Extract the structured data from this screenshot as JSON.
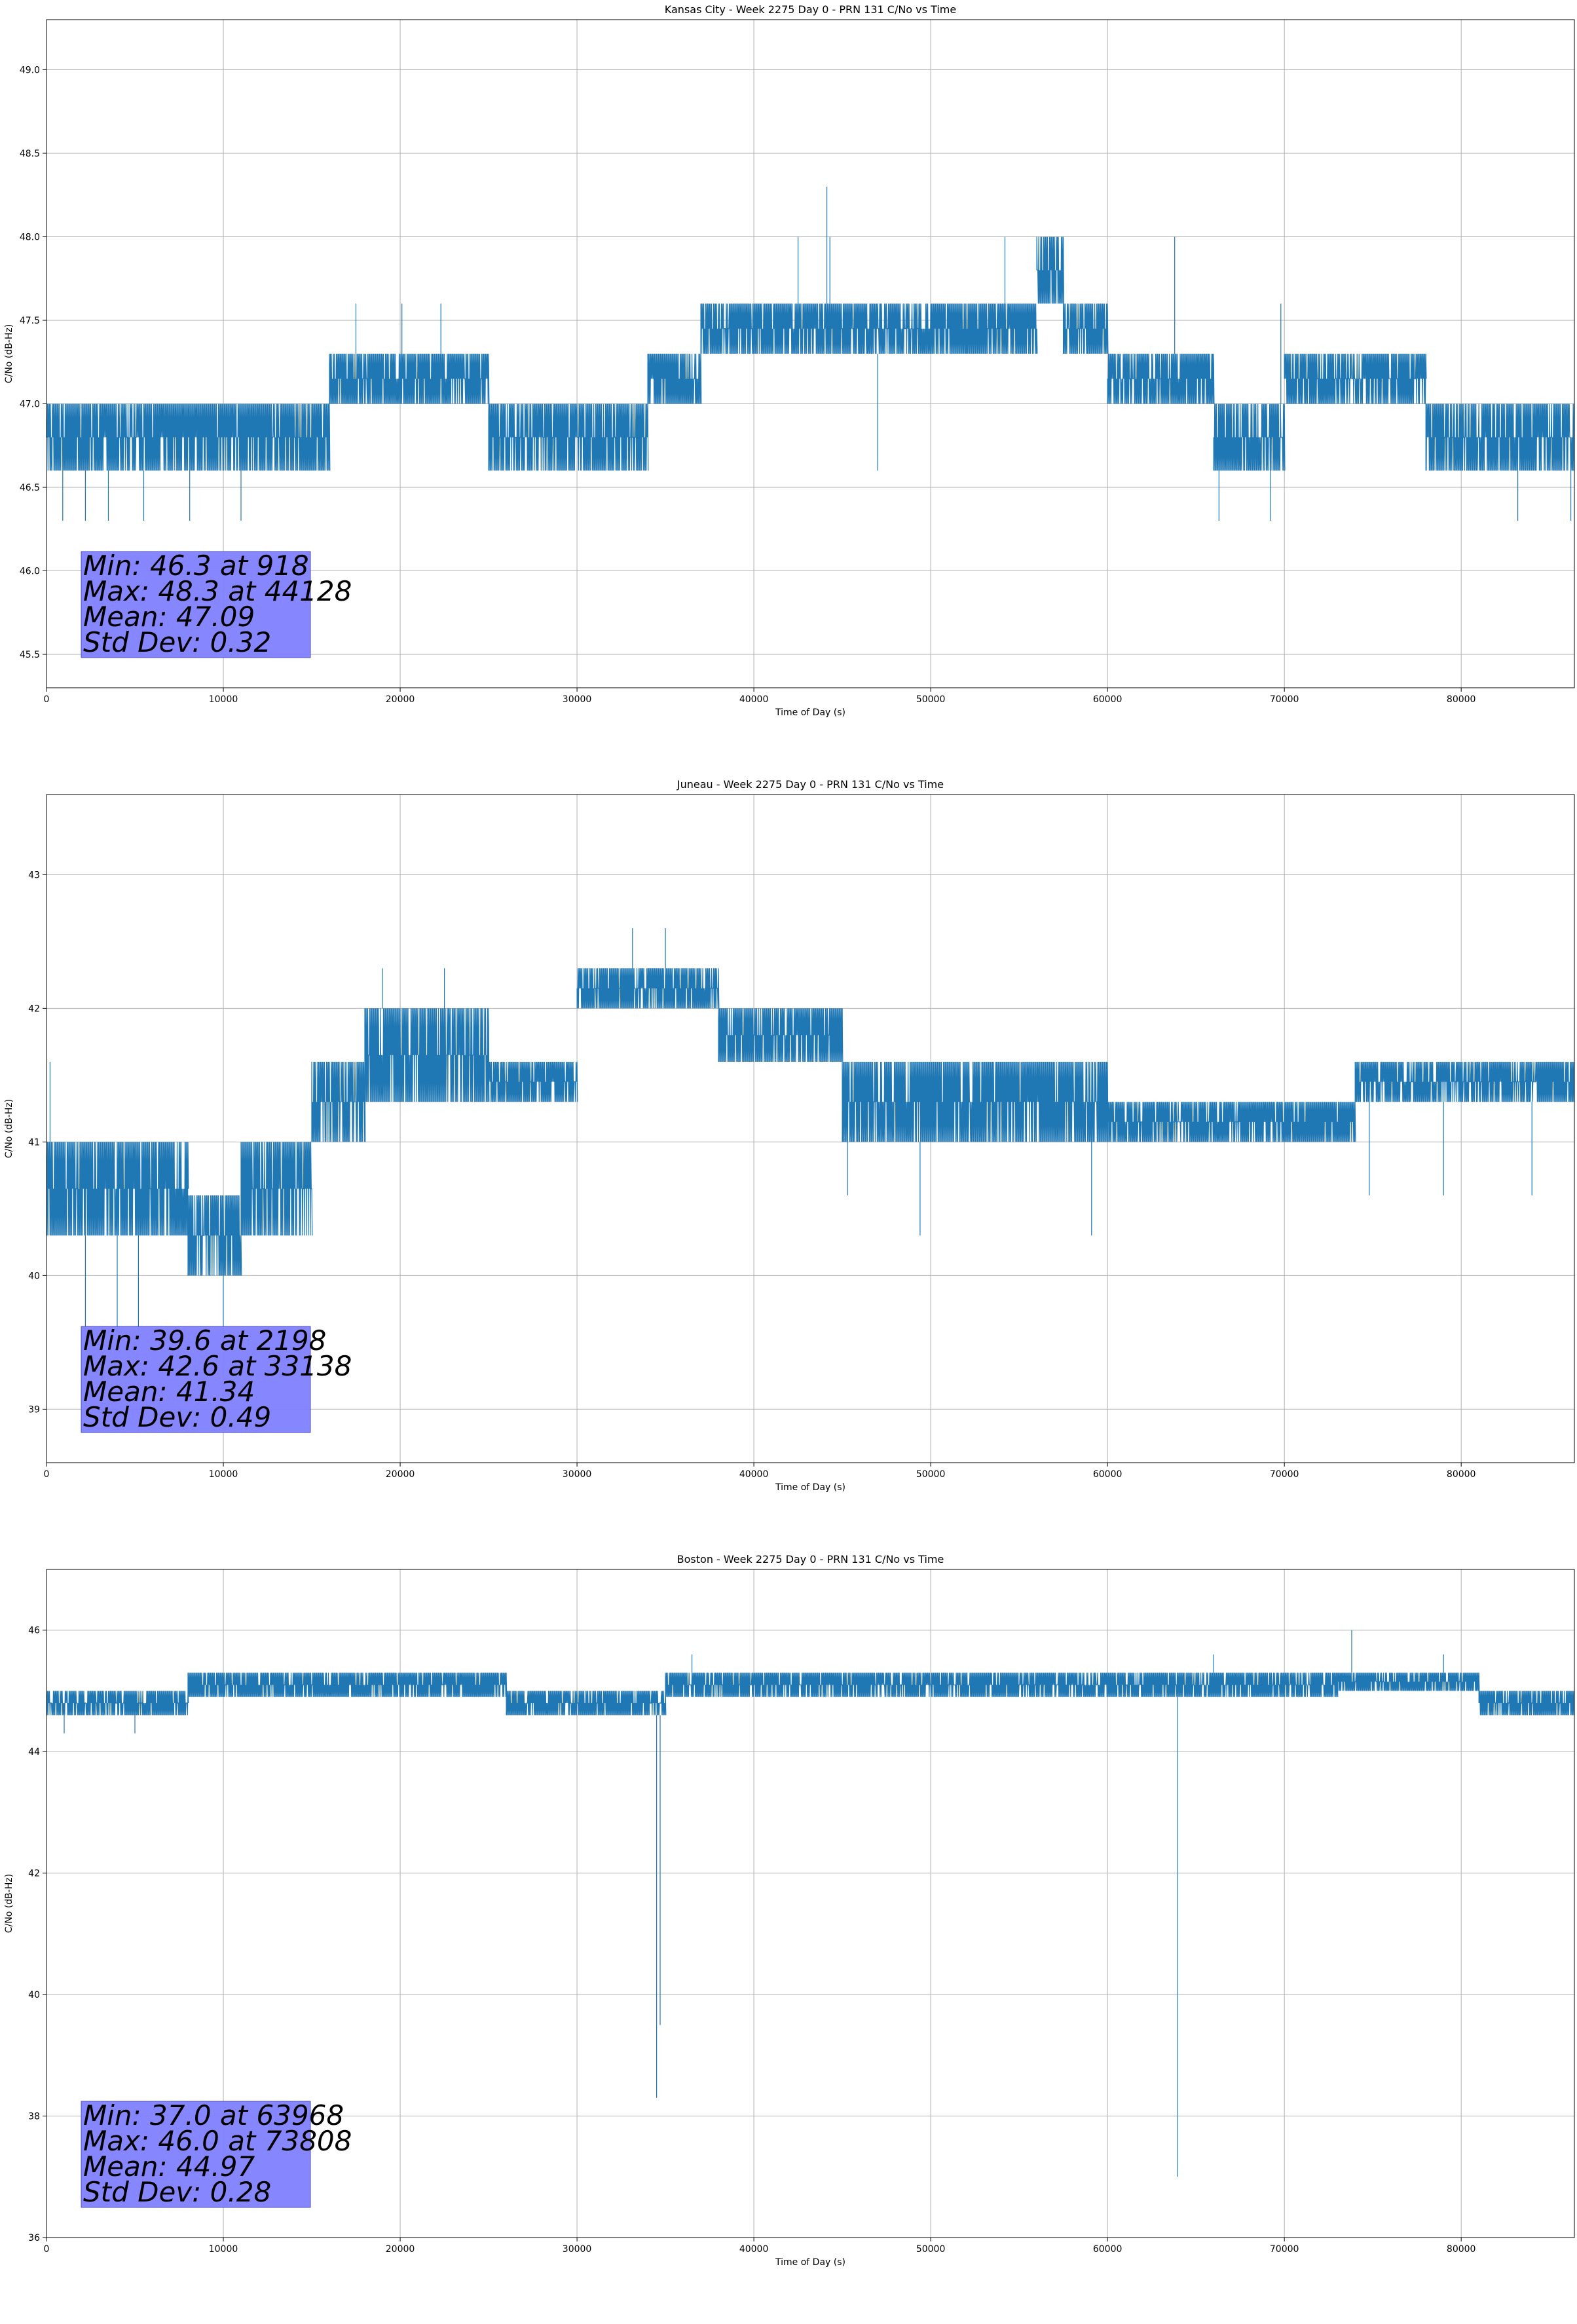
{
  "charts_meta": {
    "line_color": "#1f77b4",
    "stats_box_color": "#8080ff",
    "grid_color": "#b0b0b0"
  },
  "chart_data": [
    {
      "type": "line",
      "title": "Kansas City - Week 2275 Day 0 - PRN 131 C/No vs Time",
      "xlabel": "Time of Day (s)",
      "ylabel": "C/No (dB-Hz)",
      "xlim": [
        0,
        86400
      ],
      "ylim": [
        45.3,
        49.3
      ],
      "xticks": [
        0,
        10000,
        20000,
        30000,
        40000,
        50000,
        60000,
        70000,
        80000
      ],
      "yticks": [
        45.5,
        46.0,
        46.5,
        47.0,
        47.5,
        48.0,
        48.5,
        49.0
      ],
      "ytick_labels": [
        "45.5",
        "46.0",
        "46.5",
        "47.0",
        "47.5",
        "48.0",
        "48.5",
        "49.0"
      ],
      "grid": true,
      "stats": [
        "Min: 46.3 at 918",
        "Max: 48.3 at 44128",
        "Mean: 47.09",
        "Std Dev: 0.32"
      ],
      "series": [
        {
          "bands": [
            {
              "x": [
                0,
                16000
              ],
              "lo": 46.6,
              "hi": 47.0
            },
            {
              "x": [
                16000,
                25000
              ],
              "lo": 47.0,
              "hi": 47.3
            },
            {
              "x": [
                25000,
                34000
              ],
              "lo": 46.6,
              "hi": 47.0
            },
            {
              "x": [
                34000,
                37000
              ],
              "lo": 47.0,
              "hi": 47.3
            },
            {
              "x": [
                37000,
                46000
              ],
              "lo": 47.3,
              "hi": 47.6
            },
            {
              "x": [
                46000,
                52000
              ],
              "lo": 47.3,
              "hi": 47.6
            },
            {
              "x": [
                52000,
                56000
              ],
              "lo": 47.3,
              "hi": 47.6
            },
            {
              "x": [
                56000,
                57500
              ],
              "lo": 47.6,
              "hi": 48.0
            },
            {
              "x": [
                57500,
                60000
              ],
              "lo": 47.3,
              "hi": 47.6
            },
            {
              "x": [
                60000,
                66000
              ],
              "lo": 47.0,
              "hi": 47.3
            },
            {
              "x": [
                66000,
                70000
              ],
              "lo": 46.6,
              "hi": 47.0
            },
            {
              "x": [
                70000,
                78000
              ],
              "lo": 47.0,
              "hi": 47.3
            },
            {
              "x": [
                78000,
                86400
              ],
              "lo": 46.6,
              "hi": 47.0
            }
          ],
          "spikes": [
            {
              "x": 918,
              "y": 46.3
            },
            {
              "x": 2200,
              "y": 46.3
            },
            {
              "x": 3500,
              "y": 46.3
            },
            {
              "x": 5500,
              "y": 46.3
            },
            {
              "x": 8100,
              "y": 46.3
            },
            {
              "x": 11000,
              "y": 46.3
            },
            {
              "x": 17500,
              "y": 47.6
            },
            {
              "x": 20100,
              "y": 47.6
            },
            {
              "x": 22300,
              "y": 47.6
            },
            {
              "x": 42500,
              "y": 48.0
            },
            {
              "x": 44128,
              "y": 48.3
            },
            {
              "x": 44300,
              "y": 48.0
            },
            {
              "x": 47000,
              "y": 46.6
            },
            {
              "x": 54200,
              "y": 48.0
            },
            {
              "x": 56500,
              "y": 48.0
            },
            {
              "x": 63800,
              "y": 48.0
            },
            {
              "x": 66300,
              "y": 46.3
            },
            {
              "x": 69200,
              "y": 46.3
            },
            {
              "x": 69800,
              "y": 47.6
            },
            {
              "x": 83200,
              "y": 46.3
            },
            {
              "x": 86200,
              "y": 46.3
            }
          ]
        }
      ]
    },
    {
      "type": "line",
      "title": "Juneau - Week 2275 Day 0 - PRN 131 C/No vs Time",
      "xlabel": "Time of Day (s)",
      "ylabel": "C/No (dB-Hz)",
      "xlim": [
        0,
        86400
      ],
      "ylim": [
        38.6,
        43.6
      ],
      "xticks": [
        0,
        10000,
        20000,
        30000,
        40000,
        50000,
        60000,
        70000,
        80000
      ],
      "yticks": [
        39,
        40,
        41,
        42,
        43
      ],
      "ytick_labels": [
        "39",
        "40",
        "41",
        "42",
        "43"
      ],
      "grid": true,
      "stats": [
        "Min: 39.6 at 2198",
        "Max: 42.6 at 33138",
        "Mean: 41.34",
        "Std Dev: 0.49"
      ],
      "series": [
        {
          "bands": [
            {
              "x": [
                0,
                8000
              ],
              "lo": 40.3,
              "hi": 41.0
            },
            {
              "x": [
                8000,
                11000
              ],
              "lo": 40.0,
              "hi": 40.6
            },
            {
              "x": [
                11000,
                15000
              ],
              "lo": 40.3,
              "hi": 41.0
            },
            {
              "x": [
                15000,
                18000
              ],
              "lo": 41.0,
              "hi": 41.6
            },
            {
              "x": [
                18000,
                25000
              ],
              "lo": 41.3,
              "hi": 42.0
            },
            {
              "x": [
                25000,
                30000
              ],
              "lo": 41.3,
              "hi": 41.6
            },
            {
              "x": [
                30000,
                38000
              ],
              "lo": 42.0,
              "hi": 42.3
            },
            {
              "x": [
                38000,
                45000
              ],
              "lo": 41.6,
              "hi": 42.0
            },
            {
              "x": [
                45000,
                60000
              ],
              "lo": 41.0,
              "hi": 41.6
            },
            {
              "x": [
                60000,
                74000
              ],
              "lo": 41.0,
              "hi": 41.3
            },
            {
              "x": [
                74000,
                86400
              ],
              "lo": 41.3,
              "hi": 41.6
            }
          ],
          "spikes": [
            {
              "x": 200,
              "y": 41.6
            },
            {
              "x": 2198,
              "y": 39.6
            },
            {
              "x": 4000,
              "y": 39.6
            },
            {
              "x": 5200,
              "y": 39.6
            },
            {
              "x": 10000,
              "y": 39.6
            },
            {
              "x": 19000,
              "y": 42.3
            },
            {
              "x": 22500,
              "y": 42.3
            },
            {
              "x": 33138,
              "y": 42.6
            },
            {
              "x": 35000,
              "y": 42.6
            },
            {
              "x": 45300,
              "y": 40.6
            },
            {
              "x": 49400,
              "y": 40.3
            },
            {
              "x": 59100,
              "y": 40.3
            },
            {
              "x": 74800,
              "y": 40.6
            },
            {
              "x": 79000,
              "y": 40.6
            },
            {
              "x": 84000,
              "y": 40.6
            }
          ]
        }
      ]
    },
    {
      "type": "line",
      "title": "Boston - Week 2275 Day 0 - PRN 131 C/No vs Time",
      "xlabel": "Time of Day (s)",
      "ylabel": "C/No (dB-Hz)",
      "xlim": [
        0,
        86400
      ],
      "ylim": [
        36.0,
        47.0
      ],
      "xticks": [
        0,
        10000,
        20000,
        30000,
        40000,
        50000,
        60000,
        70000,
        80000
      ],
      "yticks": [
        36,
        38,
        40,
        42,
        44,
        46
      ],
      "ytick_labels": [
        "36",
        "38",
        "40",
        "42",
        "44",
        "46"
      ],
      "grid": true,
      "stats": [
        "Min: 37.0 at 63968",
        "Max: 46.0 at 73808",
        "Mean: 44.97",
        "Std Dev: 0.28"
      ],
      "series": [
        {
          "bands": [
            {
              "x": [
                0,
                8000
              ],
              "lo": 44.6,
              "hi": 45.0
            },
            {
              "x": [
                8000,
                26000
              ],
              "lo": 44.9,
              "hi": 45.3
            },
            {
              "x": [
                26000,
                35000
              ],
              "lo": 44.6,
              "hi": 45.0
            },
            {
              "x": [
                35000,
                73000
              ],
              "lo": 44.9,
              "hi": 45.3
            },
            {
              "x": [
                73000,
                81000
              ],
              "lo": 45.0,
              "hi": 45.3
            },
            {
              "x": [
                81000,
                86400
              ],
              "lo": 44.6,
              "hi": 45.0
            }
          ],
          "spikes": [
            {
              "x": 1000,
              "y": 44.3
            },
            {
              "x": 5000,
              "y": 44.3
            },
            {
              "x": 34500,
              "y": 38.3
            },
            {
              "x": 34700,
              "y": 39.5
            },
            {
              "x": 36500,
              "y": 45.6
            },
            {
              "x": 63968,
              "y": 37.0
            },
            {
              "x": 66000,
              "y": 45.6
            },
            {
              "x": 73808,
              "y": 46.0
            },
            {
              "x": 79000,
              "y": 45.6
            }
          ]
        }
      ]
    }
  ]
}
